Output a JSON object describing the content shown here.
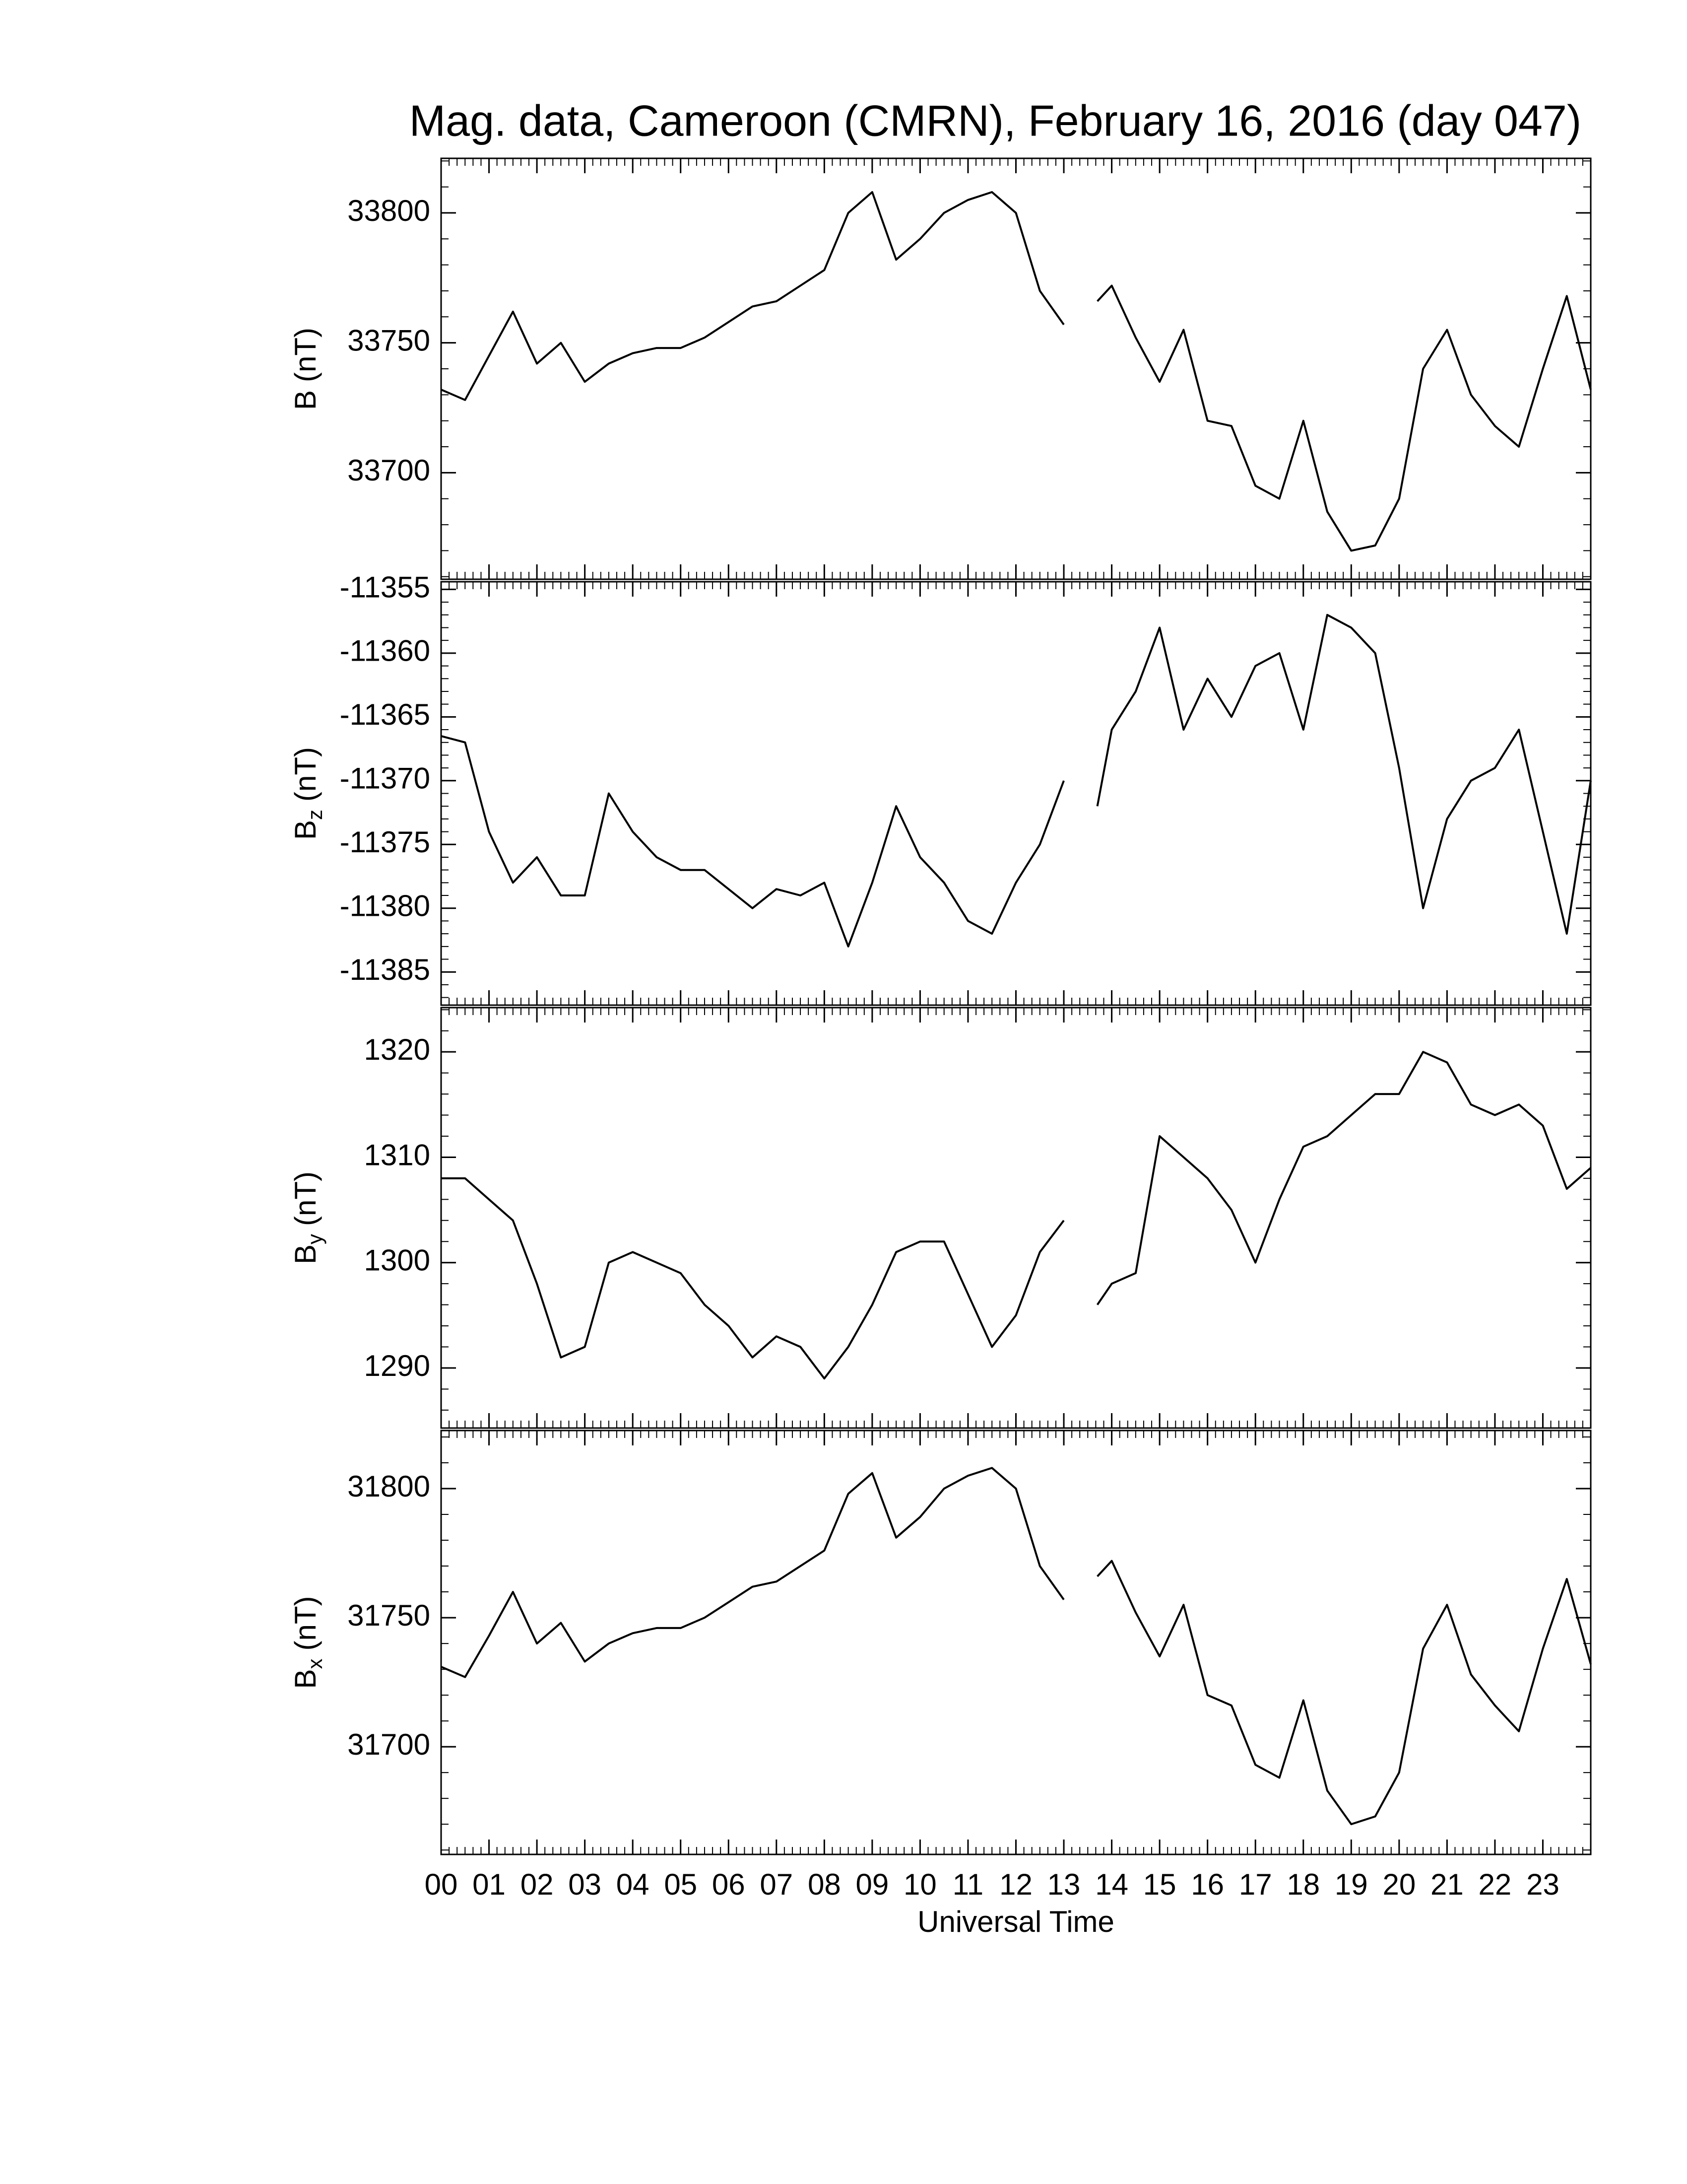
{
  "chart_data": [
    {
      "type": "line",
      "title": "Mag. data, Cameroon (CMRN), February 16, 2016 (day 047)",
      "ylabel": "B",
      "ylabel_unit": "(nT)",
      "color": "#000000",
      "x": [
        0,
        0.5,
        1,
        1.5,
        2,
        2.5,
        3,
        3.5,
        4,
        4.5,
        5,
        5.5,
        6,
        6.5,
        7,
        7.5,
        8,
        8.5,
        9,
        9.5,
        10,
        10.5,
        11,
        11.5,
        12,
        12.5,
        13,
        13.3,
        13.7,
        14,
        14.5,
        15,
        15.5,
        16,
        16.5,
        17,
        17.5,
        18,
        18.5,
        19,
        19.5,
        20,
        20.5,
        21,
        21.5,
        22,
        22.5,
        23,
        23.5,
        24
      ],
      "values": [
        33732,
        33728,
        33745,
        33762,
        33742,
        33750,
        33735,
        33742,
        33746,
        33748,
        33748,
        33752,
        33758,
        33764,
        33766,
        33772,
        33778,
        33800,
        33808,
        33782,
        33790,
        33800,
        33805,
        33808,
        33800,
        33770,
        33757,
        null,
        33766,
        33772,
        33752,
        33735,
        33755,
        33720,
        33718,
        33695,
        33690,
        33720,
        33685,
        33670,
        33672,
        33690,
        33740,
        33755,
        33730,
        33718,
        33710,
        33740,
        33768,
        33732
      ],
      "xlim": [
        0,
        24
      ],
      "ylim": [
        33659,
        33821
      ],
      "yticks": [
        33700,
        33750,
        33800
      ]
    },
    {
      "type": "line",
      "ylabel": "B",
      "ylabel_sub": "z",
      "ylabel_unit": "(nT)",
      "color": "#000000",
      "x": [
        0,
        0.5,
        1,
        1.5,
        2,
        2.5,
        3,
        3.5,
        4,
        4.5,
        5,
        5.5,
        6,
        6.5,
        7,
        7.5,
        8,
        8.5,
        9,
        9.5,
        10,
        10.5,
        11,
        11.5,
        12,
        12.5,
        13,
        13.3,
        13.7,
        14,
        14.5,
        15,
        15.5,
        16,
        16.5,
        17,
        17.5,
        18,
        18.5,
        19,
        19.5,
        20,
        20.5,
        21,
        21.5,
        22,
        22.5,
        23,
        23.5,
        24
      ],
      "values": [
        -11366.5,
        -11367,
        -11374,
        -11378,
        -11376,
        -11379,
        -11379,
        -11371,
        -11374,
        -11376,
        -11377,
        -11377,
        -11378.5,
        -11380,
        -11378.5,
        -11379,
        -11378,
        -11383,
        -11378,
        -11372,
        -11376,
        -11378,
        -11381,
        -11382,
        -11378,
        -11375,
        -11370,
        null,
        -11372,
        -11366,
        -11363,
        -11358,
        -11366,
        -11362,
        -11365,
        -11361,
        -11360,
        -11366,
        -11357,
        -11358,
        -11360,
        -11369,
        -11380,
        -11373,
        -11370,
        -11369,
        -11366,
        -11374,
        -11382,
        -11370
      ],
      "xlim": [
        0,
        24
      ],
      "ylim": [
        -11387.6,
        -11354.4
      ],
      "yticks": [
        -11385,
        -11380,
        -11375,
        -11370,
        -11365,
        -11360,
        -11355
      ]
    },
    {
      "type": "line",
      "ylabel": "B",
      "ylabel_sub": "y",
      "ylabel_unit": "(nT)",
      "color": "#000000",
      "x": [
        0,
        0.5,
        1,
        1.5,
        2,
        2.5,
        3,
        3.5,
        4,
        4.5,
        5,
        5.5,
        6,
        6.5,
        7,
        7.5,
        8,
        8.5,
        9,
        9.5,
        10,
        10.5,
        11,
        11.5,
        12,
        12.5,
        13,
        13.3,
        13.7,
        14,
        14.5,
        15,
        15.5,
        16,
        16.5,
        17,
        17.5,
        18,
        18.5,
        19,
        19.5,
        20,
        20.5,
        21,
        21.5,
        22,
        22.5,
        23,
        23.5,
        24
      ],
      "values": [
        1308,
        1308,
        1306,
        1304,
        1298,
        1291,
        1292,
        1300,
        1301,
        1300,
        1299,
        1296,
        1294,
        1291,
        1293,
        1292,
        1289,
        1292,
        1296,
        1301,
        1302,
        1302,
        1297,
        1292,
        1295,
        1301,
        1304,
        null,
        1296,
        1298,
        1299,
        1312,
        1310,
        1308,
        1305,
        1300,
        1306,
        1311,
        1312,
        1314,
        1316,
        1316,
        1320,
        1319,
        1315,
        1314,
        1315,
        1313,
        1307,
        1309
      ],
      "xlim": [
        0,
        24
      ],
      "ylim": [
        1284.3,
        1324.2
      ],
      "yticks": [
        1290,
        1300,
        1310,
        1320
      ]
    },
    {
      "type": "line",
      "ylabel": "B",
      "ylabel_sub": "x",
      "ylabel_unit": "(nT)",
      "xlabel": "Universal Time",
      "color": "#000000",
      "x": [
        0,
        0.5,
        1,
        1.5,
        2,
        2.5,
        3,
        3.5,
        4,
        4.5,
        5,
        5.5,
        6,
        6.5,
        7,
        7.5,
        8,
        8.5,
        9,
        9.5,
        10,
        10.5,
        11,
        11.5,
        12,
        12.5,
        13,
        13.3,
        13.7,
        14,
        14.5,
        15,
        15.5,
        16,
        16.5,
        17,
        17.5,
        18,
        18.5,
        19,
        19.5,
        20,
        20.5,
        21,
        21.5,
        22,
        22.5,
        23,
        23.5,
        24
      ],
      "values": [
        31731,
        31727,
        31743,
        31760,
        31740,
        31748,
        31733,
        31740,
        31744,
        31746,
        31746,
        31750,
        31756,
        31762,
        31764,
        31770,
        31776,
        31798,
        31806,
        31781,
        31789,
        31800,
        31805,
        31808,
        31800,
        31770,
        31757,
        null,
        31766,
        31772,
        31752,
        31735,
        31755,
        31720,
        31716,
        31693,
        31688,
        31718,
        31683,
        31670,
        31673,
        31690,
        31738,
        31755,
        31728,
        31716,
        31706,
        31738,
        31765,
        31732
      ],
      "xlim": [
        0,
        24
      ],
      "ylim": [
        31658.3,
        31822.5
      ],
      "yticks": [
        31700,
        31750,
        31800
      ],
      "xticks": [
        {
          "value": 0,
          "label": "00"
        },
        {
          "value": 1,
          "label": "01"
        },
        {
          "value": 2,
          "label": "02"
        },
        {
          "value": 3,
          "label": "03"
        },
        {
          "value": 4,
          "label": "04"
        },
        {
          "value": 5,
          "label": "05"
        },
        {
          "value": 6,
          "label": "06"
        },
        {
          "value": 7,
          "label": "07"
        },
        {
          "value": 8,
          "label": "08"
        },
        {
          "value": 9,
          "label": "09"
        },
        10,
        11,
        12,
        13,
        14,
        15,
        16,
        17,
        18,
        19,
        20,
        21,
        22,
        23
      ]
    }
  ]
}
